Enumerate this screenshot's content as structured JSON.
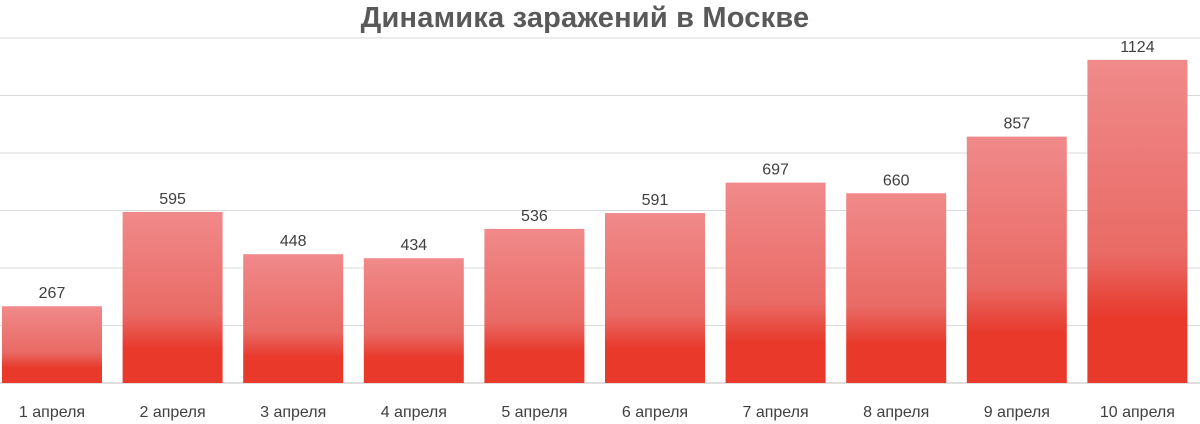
{
  "chart_data": {
    "type": "bar",
    "title": "Динамика заражений в Москве",
    "categories": [
      "1 апреля",
      "2 апреля",
      "3 апреля",
      "4 апреля",
      "5 апреля",
      "6 апреля",
      "7 апреля",
      "8 апреля",
      "9 апреля",
      "10 апреля"
    ],
    "values": [
      267,
      595,
      448,
      434,
      536,
      591,
      697,
      660,
      857,
      1124
    ],
    "data_labels": [
      "267",
      "595",
      "448",
      "434",
      "536",
      "591",
      "697",
      "660",
      "857",
      "1124"
    ],
    "ylim": [
      0,
      1200
    ],
    "grid": true,
    "legend": "none",
    "colors": {
      "bar_top": "#f08a8a",
      "bar_bottom": "#e8392b",
      "gridline": "#d9d9d9",
      "text": "#404040",
      "title": "#595959"
    }
  }
}
